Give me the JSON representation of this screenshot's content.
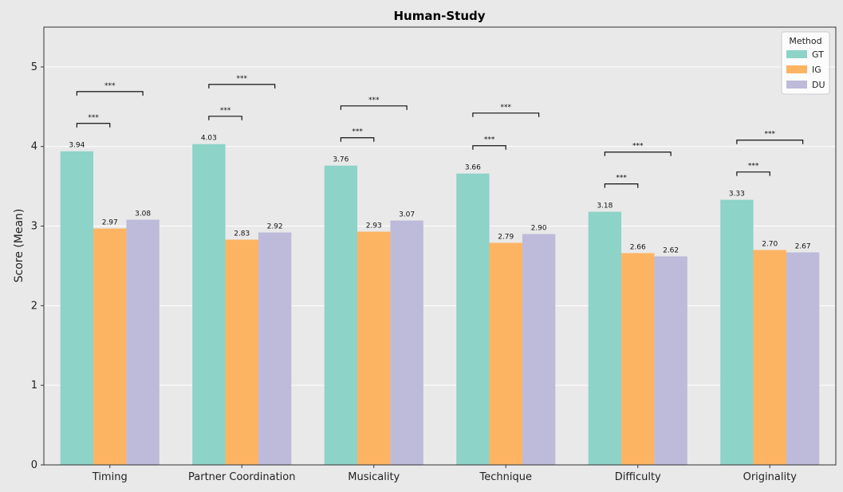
{
  "chart_data": {
    "type": "bar",
    "title": "Human-Study",
    "xlabel": "",
    "ylabel": "Score (Mean)",
    "ylim": [
      0,
      5.5
    ],
    "yticks": [
      0,
      1,
      2,
      3,
      4,
      5
    ],
    "grid": "horizontal",
    "legend": {
      "title": "Method",
      "placement": "top-right"
    },
    "categories": [
      "Timing",
      "Partner Coordination",
      "Musicality",
      "Technique",
      "Difficulty",
      "Originality"
    ],
    "series": [
      {
        "name": "GT",
        "color": "#8dd3c7",
        "values": [
          3.94,
          4.03,
          3.76,
          3.66,
          3.18,
          3.33
        ],
        "labels": [
          "3.94",
          "4.03",
          "3.76",
          "3.66",
          "3.18",
          "3.33"
        ]
      },
      {
        "name": "IG",
        "color": "#fdb462",
        "values": [
          2.97,
          2.83,
          2.93,
          2.79,
          2.66,
          2.7
        ],
        "labels": [
          "2.97",
          "2.83",
          "2.93",
          "2.79",
          "2.66",
          "2.70"
        ]
      },
      {
        "name": "DU",
        "color": "#bebada",
        "values": [
          3.08,
          2.92,
          3.07,
          2.9,
          2.62,
          2.67
        ],
        "labels": [
          "3.08",
          "2.92",
          "3.07",
          "2.90",
          "2.62",
          "2.67"
        ]
      }
    ],
    "significance": [
      {
        "category": "Timing",
        "pairs": [
          {
            "from": "GT",
            "to": "IG",
            "y": 4.29,
            "label": "***"
          },
          {
            "from": "GT",
            "to": "DU",
            "y": 4.69,
            "label": "***"
          }
        ]
      },
      {
        "category": "Partner Coordination",
        "pairs": [
          {
            "from": "GT",
            "to": "IG",
            "y": 4.38,
            "label": "***"
          },
          {
            "from": "GT",
            "to": "DU",
            "y": 4.78,
            "label": "***"
          }
        ]
      },
      {
        "category": "Musicality",
        "pairs": [
          {
            "from": "GT",
            "to": "IG",
            "y": 4.11,
            "label": "***"
          },
          {
            "from": "GT",
            "to": "DU",
            "y": 4.51,
            "label": "***"
          }
        ]
      },
      {
        "category": "Technique",
        "pairs": [
          {
            "from": "GT",
            "to": "IG",
            "y": 4.01,
            "label": "***"
          },
          {
            "from": "GT",
            "to": "DU",
            "y": 4.42,
            "label": "***"
          }
        ]
      },
      {
        "category": "Difficulty",
        "pairs": [
          {
            "from": "GT",
            "to": "IG",
            "y": 3.53,
            "label": "***"
          },
          {
            "from": "GT",
            "to": "DU",
            "y": 3.93,
            "label": "***"
          }
        ]
      },
      {
        "category": "Originality",
        "pairs": [
          {
            "from": "GT",
            "to": "IG",
            "y": 3.68,
            "label": "***"
          },
          {
            "from": "GT",
            "to": "DU",
            "y": 4.08,
            "label": "***"
          }
        ]
      }
    ],
    "colors": {
      "figure_background": "#e9e9e9",
      "axes_background": "#e9e9e9",
      "grid": "#ffffff",
      "axes_edge": "#333333"
    }
  }
}
